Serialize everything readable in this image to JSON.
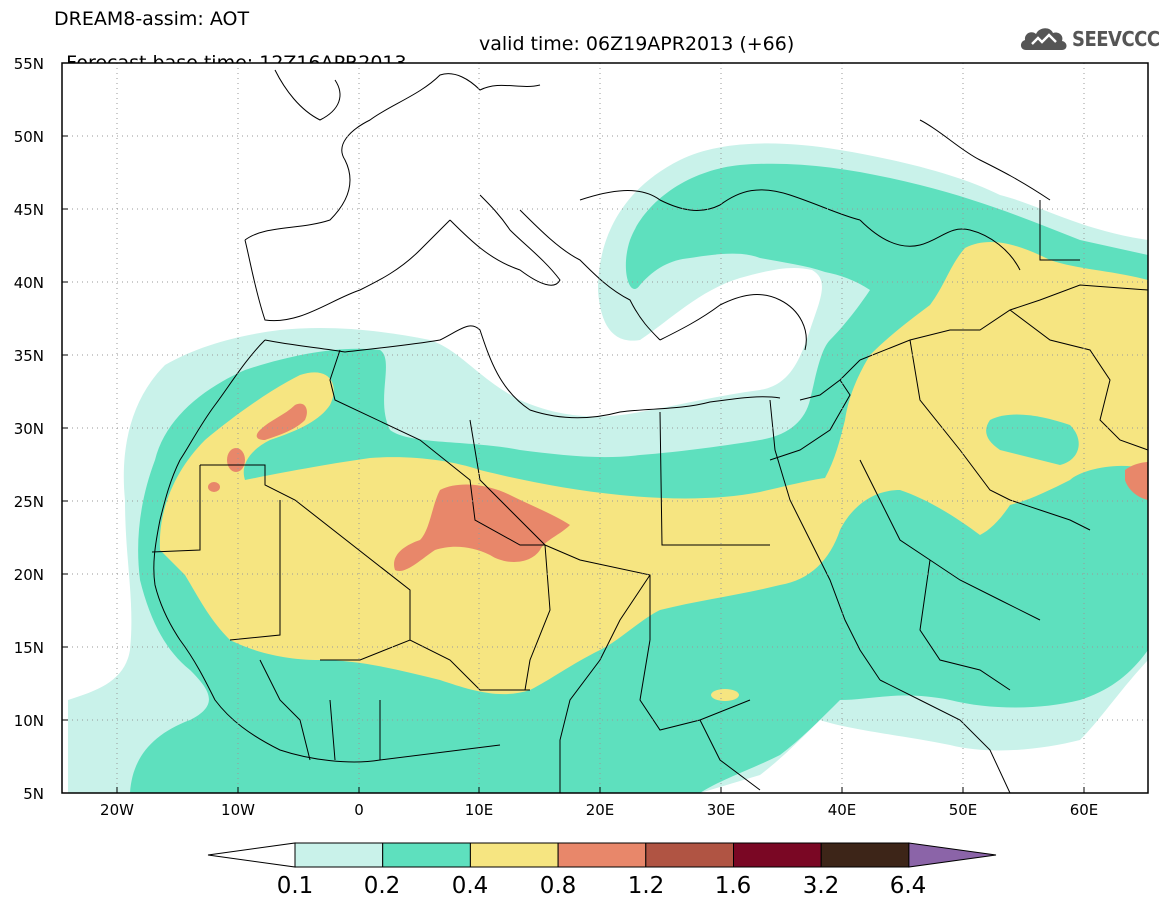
{
  "header": {
    "title": "DREAM8-assim: AOT",
    "base_time": "Forecast base time: 12Z16APR2013",
    "valid_time": "valid time: 06Z19APR2013 (+66)"
  },
  "logo": {
    "text": "SEEVCCC",
    "icon": "cloud-icon"
  },
  "map": {
    "lat_labels": [
      "55N",
      "50N",
      "45N",
      "40N",
      "35N",
      "30N",
      "25N",
      "20N",
      "15N",
      "10N",
      "5N"
    ],
    "lon_labels": [
      "20W",
      "10W",
      "0",
      "10E",
      "20E",
      "30E",
      "40E",
      "50E",
      "60E"
    ],
    "grid": true
  },
  "colorbar": {
    "thresholds": [
      "0.1",
      "0.2",
      "0.4",
      "0.8",
      "1.2",
      "1.6",
      "3.2",
      "6.4"
    ],
    "colors": [
      "#ffffff",
      "#c9f2ea",
      "#5ee0be",
      "#f6e581",
      "#e8876a",
      "#b05443",
      "#7a0724",
      "#3d2518",
      "#8b64a8"
    ]
  }
}
